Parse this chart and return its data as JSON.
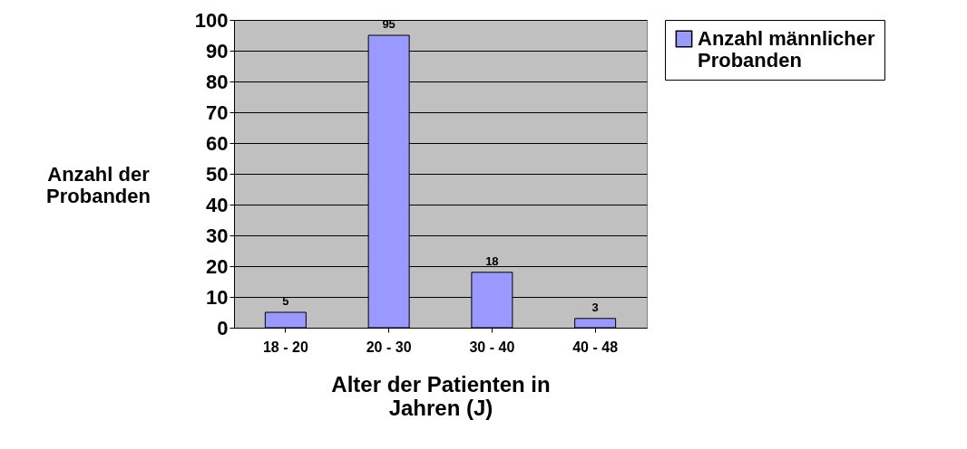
{
  "chart_data": {
    "type": "bar",
    "categories": [
      "18 - 20",
      "20 - 30",
      "30 - 40",
      "40 - 48"
    ],
    "series": [
      {
        "name": "Anzahl männlicher Probanden",
        "color": "#9999ff",
        "values": [
          5,
          95,
          18,
          3
        ]
      }
    ],
    "xlabel": "Alter der Patienten in Jahren (J)",
    "ylabel": "Anzahl der Probanden",
    "ylim": [
      0,
      100
    ],
    "yticks": [
      0,
      10,
      20,
      30,
      40,
      50,
      60,
      70,
      80,
      90,
      100
    ],
    "grid": "y",
    "legend": "right",
    "data_labels": true
  }
}
